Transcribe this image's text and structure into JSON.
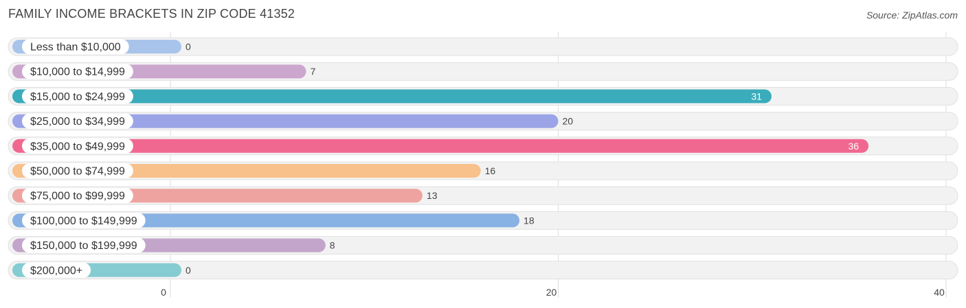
{
  "header": {
    "title": "FAMILY INCOME BRACKETS IN ZIP CODE 41352",
    "source": "Source: ZipAtlas.com"
  },
  "chart_data": {
    "type": "bar",
    "orientation": "horizontal",
    "title": "FAMILY INCOME BRACKETS IN ZIP CODE 41352",
    "categories": [
      "Less than $10,000",
      "$10,000 to $14,999",
      "$15,000 to $24,999",
      "$25,000 to $34,999",
      "$35,000 to $49,999",
      "$50,000 to $74,999",
      "$75,000 to $99,999",
      "$100,000 to $149,999",
      "$150,000 to $199,999",
      "$200,000+"
    ],
    "values": [
      0,
      7,
      31,
      20,
      36,
      16,
      13,
      18,
      8,
      0
    ],
    "colors": [
      "#a9c4ea",
      "#cba6cd",
      "#3aacbc",
      "#9ba4e6",
      "#f06890",
      "#f8c08a",
      "#eea3a0",
      "#88b1e4",
      "#c3a5cb",
      "#84ccd2"
    ],
    "xlim": [
      0,
      40
    ],
    "xticks": [
      0,
      20,
      40
    ],
    "grid": true,
    "legend": "none"
  }
}
